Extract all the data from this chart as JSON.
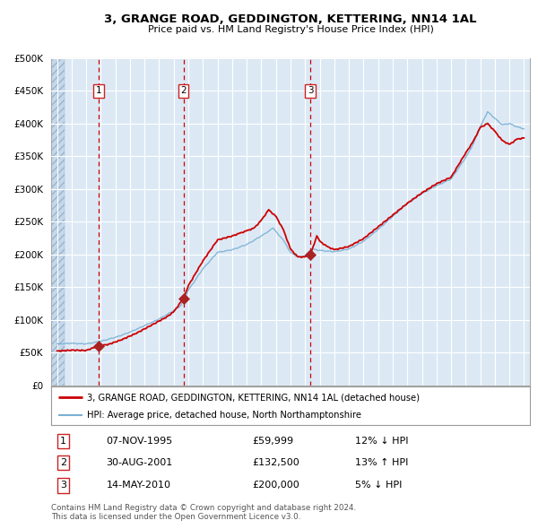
{
  "title": "3, GRANGE ROAD, GEDDINGTON, KETTERING, NN14 1AL",
  "subtitle": "Price paid vs. HM Land Registry's House Price Index (HPI)",
  "legend_line1": "3, GRANGE ROAD, GEDDINGTON, KETTERING, NN14 1AL (detached house)",
  "legend_line2": "HPI: Average price, detached house, North Northamptonshire",
  "footer1": "Contains HM Land Registry data © Crown copyright and database right 2024.",
  "footer2": "This data is licensed under the Open Government Licence v3.0.",
  "transactions": [
    {
      "num": 1,
      "date": "07-NOV-1995",
      "year": 1995.85,
      "price": 59999,
      "label": "07-NOV-1995",
      "price_label": "£59,999",
      "hpi_label": "12% ↓ HPI"
    },
    {
      "num": 2,
      "date": "30-AUG-2001",
      "year": 2001.66,
      "price": 132500,
      "label": "30-AUG-2001",
      "price_label": "£132,500",
      "hpi_label": "13% ↑ HPI"
    },
    {
      "num": 3,
      "date": "14-MAY-2010",
      "year": 2010.37,
      "price": 200000,
      "label": "14-MAY-2010",
      "price_label": "£200,000",
      "hpi_label": "5% ↓ HPI"
    }
  ],
  "ylim": [
    0,
    500000
  ],
  "yticks": [
    0,
    50000,
    100000,
    150000,
    200000,
    250000,
    300000,
    350000,
    400000,
    450000,
    500000
  ],
  "xlim_start": 1992.6,
  "xlim_end": 2025.4,
  "plot_bg": "#dce9f5",
  "grid_color": "#ffffff",
  "red_line_color": "#cc0000",
  "blue_line_color": "#7ab0d4",
  "dot_color": "#aa2222",
  "vline_color": "#cc0000",
  "box_color": "#cc2222",
  "hatch_fill": "#c5d8ea"
}
